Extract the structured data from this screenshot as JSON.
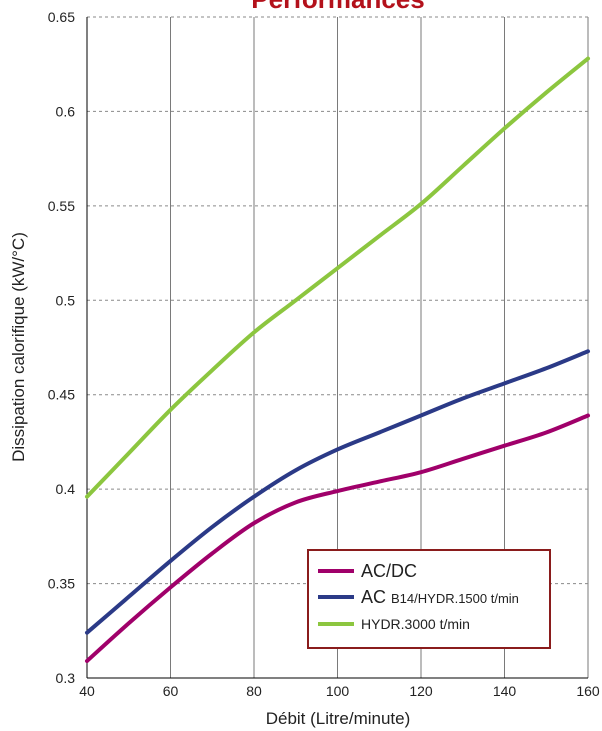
{
  "chart_data": {
    "type": "line",
    "title": "Performances",
    "xlabel": "Débit (Litre/minute)",
    "ylabel": "Dissipation calorifique (kW/°C)",
    "xlim": [
      40,
      160
    ],
    "ylim": [
      0.3,
      0.65
    ],
    "xticks": [
      "40",
      "60",
      "80",
      "100",
      "120",
      "140",
      "160"
    ],
    "yticks": [
      "0.3",
      "0.35",
      "0.4",
      "0.45",
      "0.5",
      "0.55",
      "0.6",
      "0.65"
    ],
    "grid": true,
    "legend_position": "bottom-right",
    "series": [
      {
        "name": "AC/DC",
        "color": "#a0006a",
        "x": [
          40,
          50,
          60,
          70,
          80,
          90,
          100,
          110,
          120,
          130,
          140,
          150,
          160
        ],
        "y": [
          0.309,
          0.329,
          0.348,
          0.366,
          0.382,
          0.393,
          0.399,
          0.404,
          0.409,
          0.416,
          0.423,
          0.43,
          0.439
        ]
      },
      {
        "name": "AC",
        "name_suffix": "B14/HYDR.1500 t/min",
        "color": "#2b3a87",
        "x": [
          40,
          50,
          60,
          70,
          80,
          90,
          100,
          110,
          120,
          130,
          140,
          150,
          160
        ],
        "y": [
          0.324,
          0.343,
          0.362,
          0.38,
          0.396,
          0.41,
          0.421,
          0.43,
          0.439,
          0.448,
          0.456,
          0.464,
          0.473
        ]
      },
      {
        "name": "HYDR.3000 t/min",
        "color": "#8cc63f",
        "x": [
          40,
          50,
          60,
          70,
          80,
          90,
          100,
          110,
          120,
          130,
          140,
          150,
          160
        ],
        "y": [
          0.396,
          0.419,
          0.442,
          0.463,
          0.483,
          0.5,
          0.517,
          0.534,
          0.551,
          0.571,
          0.591,
          0.61,
          0.628
        ]
      }
    ]
  }
}
